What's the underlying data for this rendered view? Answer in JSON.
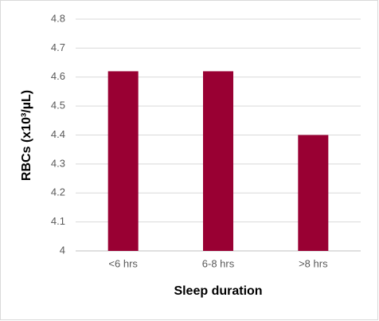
{
  "chart_data": {
    "type": "bar",
    "categories": [
      "<6 hrs",
      "6-8 hrs",
      ">8 hrs"
    ],
    "values": [
      4.62,
      4.62,
      4.4
    ],
    "color": "#990033",
    "ylim": [
      4,
      4.8
    ],
    "yticks": [
      4,
      4.1,
      4.2,
      4.3,
      4.4,
      4.5,
      4.6,
      4.7,
      4.8
    ],
    "grid": true,
    "x_label": "Sleep duration",
    "y_label": "RBCs (x10³/µL)"
  }
}
